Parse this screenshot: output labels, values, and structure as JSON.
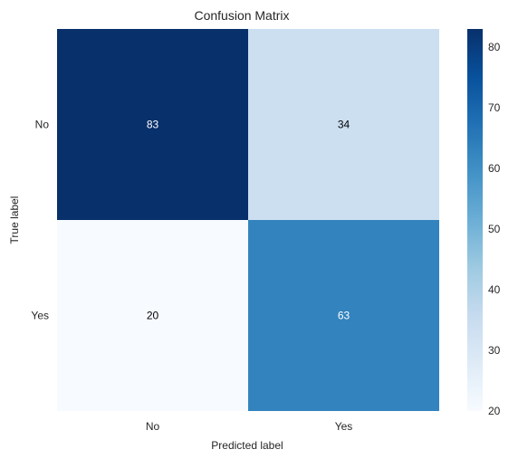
{
  "chart_data": {
    "type": "heatmap",
    "title": "Confusion Matrix",
    "xlabel": "Predicted label",
    "ylabel": "True label",
    "x_categories": [
      "No",
      "Yes"
    ],
    "y_categories": [
      "No",
      "Yes"
    ],
    "matrix": [
      [
        83,
        34
      ],
      [
        20,
        63
      ]
    ],
    "colormap": "Blues",
    "color_range": [
      20,
      83
    ],
    "colorbar_ticks": [
      20,
      30,
      40,
      50,
      60,
      70,
      80
    ],
    "grid": false,
    "colorbar": "right"
  }
}
